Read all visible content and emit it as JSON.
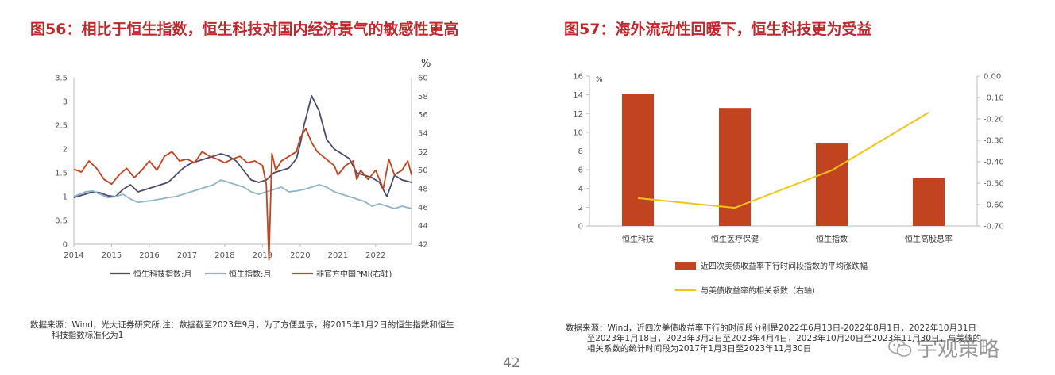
{
  "fig56": {
    "title": "图56：相比于恒生指数，恒生科技对国内经济景气的敏感性更高",
    "source_text": "数据来源：Wind，光大证券研究所.注：数据截至2023年9月，为了方便显示，将2015年1月2日的恒生指数和恒生\n        科技指数标准化为1",
    "chart_data": {
      "type": "line",
      "x_ticks": [
        "2014",
        "2015",
        "2016",
        "2017",
        "2018",
        "2019",
        "2020",
        "2021",
        "2022"
      ],
      "x_range": [
        2014,
        2022.95
      ],
      "y_left": {
        "range": [
          0,
          3.5
        ],
        "ticks": [
          "0",
          "0.5",
          "1",
          "1.5",
          "2",
          "2.5",
          "3",
          "3.5"
        ]
      },
      "y_right": {
        "range": [
          42,
          60
        ],
        "ticks": [
          "42",
          "44",
          "46",
          "48",
          "50",
          "52",
          "54",
          "56",
          "58",
          "60"
        ],
        "unit": "%"
      },
      "legend": [
        "恒生科技指数:月",
        "恒生指数:月",
        "非官方中国PMI(右轴)"
      ],
      "colors": {
        "hstech": "#4a4a6e",
        "hsi": "#8db4c9",
        "pmi": "#c2431f"
      },
      "series": [
        {
          "name": "恒生科技指数:月",
          "axis": "left",
          "x": [
            2014.0,
            2014.3,
            2014.5,
            2014.7,
            2014.9,
            2015.1,
            2015.3,
            2015.5,
            2015.7,
            2015.9,
            2016.1,
            2016.3,
            2016.5,
            2016.7,
            2016.9,
            2017.1,
            2017.3,
            2017.5,
            2017.7,
            2017.9,
            2018.1,
            2018.3,
            2018.5,
            2018.7,
            2018.9,
            2019.1,
            2019.3,
            2019.5,
            2019.7,
            2019.9,
            2020.0,
            2020.1,
            2020.2,
            2020.3,
            2020.5,
            2020.7,
            2020.9,
            2021.1,
            2021.3,
            2021.5,
            2021.7,
            2021.9,
            2022.1,
            2022.3,
            2022.5,
            2022.7,
            2022.95
          ],
          "values": [
            0.98,
            1.05,
            1.1,
            1.08,
            1.02,
            1.0,
            1.15,
            1.25,
            1.1,
            1.15,
            1.2,
            1.25,
            1.3,
            1.45,
            1.6,
            1.7,
            1.75,
            1.8,
            1.85,
            1.9,
            1.85,
            1.75,
            1.55,
            1.35,
            1.3,
            1.35,
            1.5,
            1.55,
            1.6,
            1.8,
            2.1,
            2.5,
            2.8,
            3.12,
            2.8,
            2.2,
            2.0,
            1.9,
            1.8,
            1.5,
            1.45,
            1.4,
            1.3,
            1.0,
            1.45,
            1.35,
            1.3
          ]
        },
        {
          "name": "恒生指数:月",
          "axis": "left",
          "x": [
            2014.0,
            2014.3,
            2014.5,
            2014.7,
            2014.9,
            2015.1,
            2015.3,
            2015.5,
            2015.7,
            2015.9,
            2016.1,
            2016.3,
            2016.5,
            2016.7,
            2016.9,
            2017.1,
            2017.3,
            2017.5,
            2017.7,
            2017.9,
            2018.1,
            2018.3,
            2018.5,
            2018.7,
            2018.9,
            2019.1,
            2019.3,
            2019.5,
            2019.7,
            2019.9,
            2020.1,
            2020.3,
            2020.5,
            2020.7,
            2020.9,
            2021.1,
            2021.3,
            2021.5,
            2021.7,
            2021.9,
            2022.1,
            2022.3,
            2022.5,
            2022.7,
            2022.95
          ],
          "values": [
            1.0,
            1.1,
            1.12,
            1.05,
            0.98,
            1.0,
            1.05,
            0.95,
            0.88,
            0.9,
            0.92,
            0.95,
            0.98,
            1.0,
            1.05,
            1.1,
            1.15,
            1.2,
            1.25,
            1.35,
            1.3,
            1.25,
            1.2,
            1.1,
            1.05,
            1.1,
            1.15,
            1.2,
            1.1,
            1.12,
            1.15,
            1.2,
            1.25,
            1.2,
            1.1,
            1.05,
            1.0,
            0.95,
            0.9,
            0.8,
            0.85,
            0.8,
            0.75,
            0.8,
            0.75
          ]
        },
        {
          "name": "非官方中国PMI(右轴)",
          "axis": "right",
          "x": [
            2014.0,
            2014.2,
            2014.4,
            2014.6,
            2014.8,
            2015.0,
            2015.2,
            2015.4,
            2015.6,
            2015.8,
            2016.0,
            2016.2,
            2016.4,
            2016.6,
            2016.8,
            2017.0,
            2017.2,
            2017.4,
            2017.6,
            2017.8,
            2018.0,
            2018.2,
            2018.4,
            2018.6,
            2018.8,
            2019.0,
            2019.1,
            2019.17,
            2019.25,
            2019.35,
            2019.5,
            2019.7,
            2019.9,
            2020.0,
            2020.15,
            2020.3,
            2020.45,
            2020.6,
            2020.75,
            2020.9,
            2021.0,
            2021.2,
            2021.4,
            2021.5,
            2021.6,
            2021.8,
            2022.0,
            2022.2,
            2022.35,
            2022.5,
            2022.7,
            2022.85,
            2022.95
          ],
          "values": [
            50.1,
            49.8,
            51.0,
            50.2,
            49.0,
            48.5,
            49.5,
            50.2,
            49.2,
            50.0,
            51.0,
            50.0,
            51.5,
            52.0,
            51.0,
            51.2,
            50.8,
            52.0,
            51.5,
            51.2,
            50.8,
            51.2,
            51.5,
            50.8,
            51.0,
            50.5,
            48.5,
            40.3,
            51.8,
            50.0,
            51.0,
            51.5,
            52.0,
            53.5,
            54.5,
            53.0,
            52.0,
            51.5,
            51.0,
            50.5,
            49.5,
            50.5,
            51.0,
            49.0,
            50.0,
            49.0,
            50.0,
            48.0,
            51.2,
            49.5,
            50.0,
            51.0,
            49.5
          ]
        }
      ]
    }
  },
  "fig57": {
    "title": "图57：海外流动性回暖下，恒生科技更为受益",
    "source_text": "数据来源：Wind，近四次美债收益率下行的时间段分别是2022年6月13日-2022年8月1日，2022年10月31日\n        至2023年1月18日，2023年3月2日至2023年4月4日，2023年10月20日至2023年11月30日，与美债的\n        相关系数的统计时间段为2017年1月3日至2023年11月30日",
    "chart_data": {
      "type": "bar",
      "categories": [
        "恒生科技",
        "恒生医疗保健",
        "恒生指数",
        "恒生高股息率"
      ],
      "y_left": {
        "range": [
          0,
          16
        ],
        "ticks": [
          "0",
          "2",
          "4",
          "6",
          "8",
          "10",
          "12",
          "14",
          "16"
        ],
        "unit": "%"
      },
      "y_right": {
        "range": [
          -0.7,
          0
        ],
        "ticks": [
          "0.00",
          "-0.10",
          "-0.20",
          "-0.30",
          "-0.40",
          "-0.50",
          "-0.60",
          "-0.70"
        ]
      },
      "legend": [
        "近四次美债收益率下行时间段指数的平均涨跌幅",
        "与美债收益率的相关系数（右轴）"
      ],
      "colors": {
        "bar": "#c2431f",
        "line": "#f0c419"
      },
      "series": [
        {
          "name": "近四次美债收益率下行时间段指数的平均涨跌幅",
          "type": "bar",
          "axis": "left",
          "values": [
            14.1,
            12.6,
            8.8,
            5.1
          ]
        },
        {
          "name": "与美债收益率的相关系数（右轴）",
          "type": "line",
          "axis": "right",
          "values": [
            -0.57,
            -0.615,
            -0.44,
            -0.17
          ]
        }
      ]
    }
  },
  "page_number": "42",
  "watermark": "宇观策略"
}
